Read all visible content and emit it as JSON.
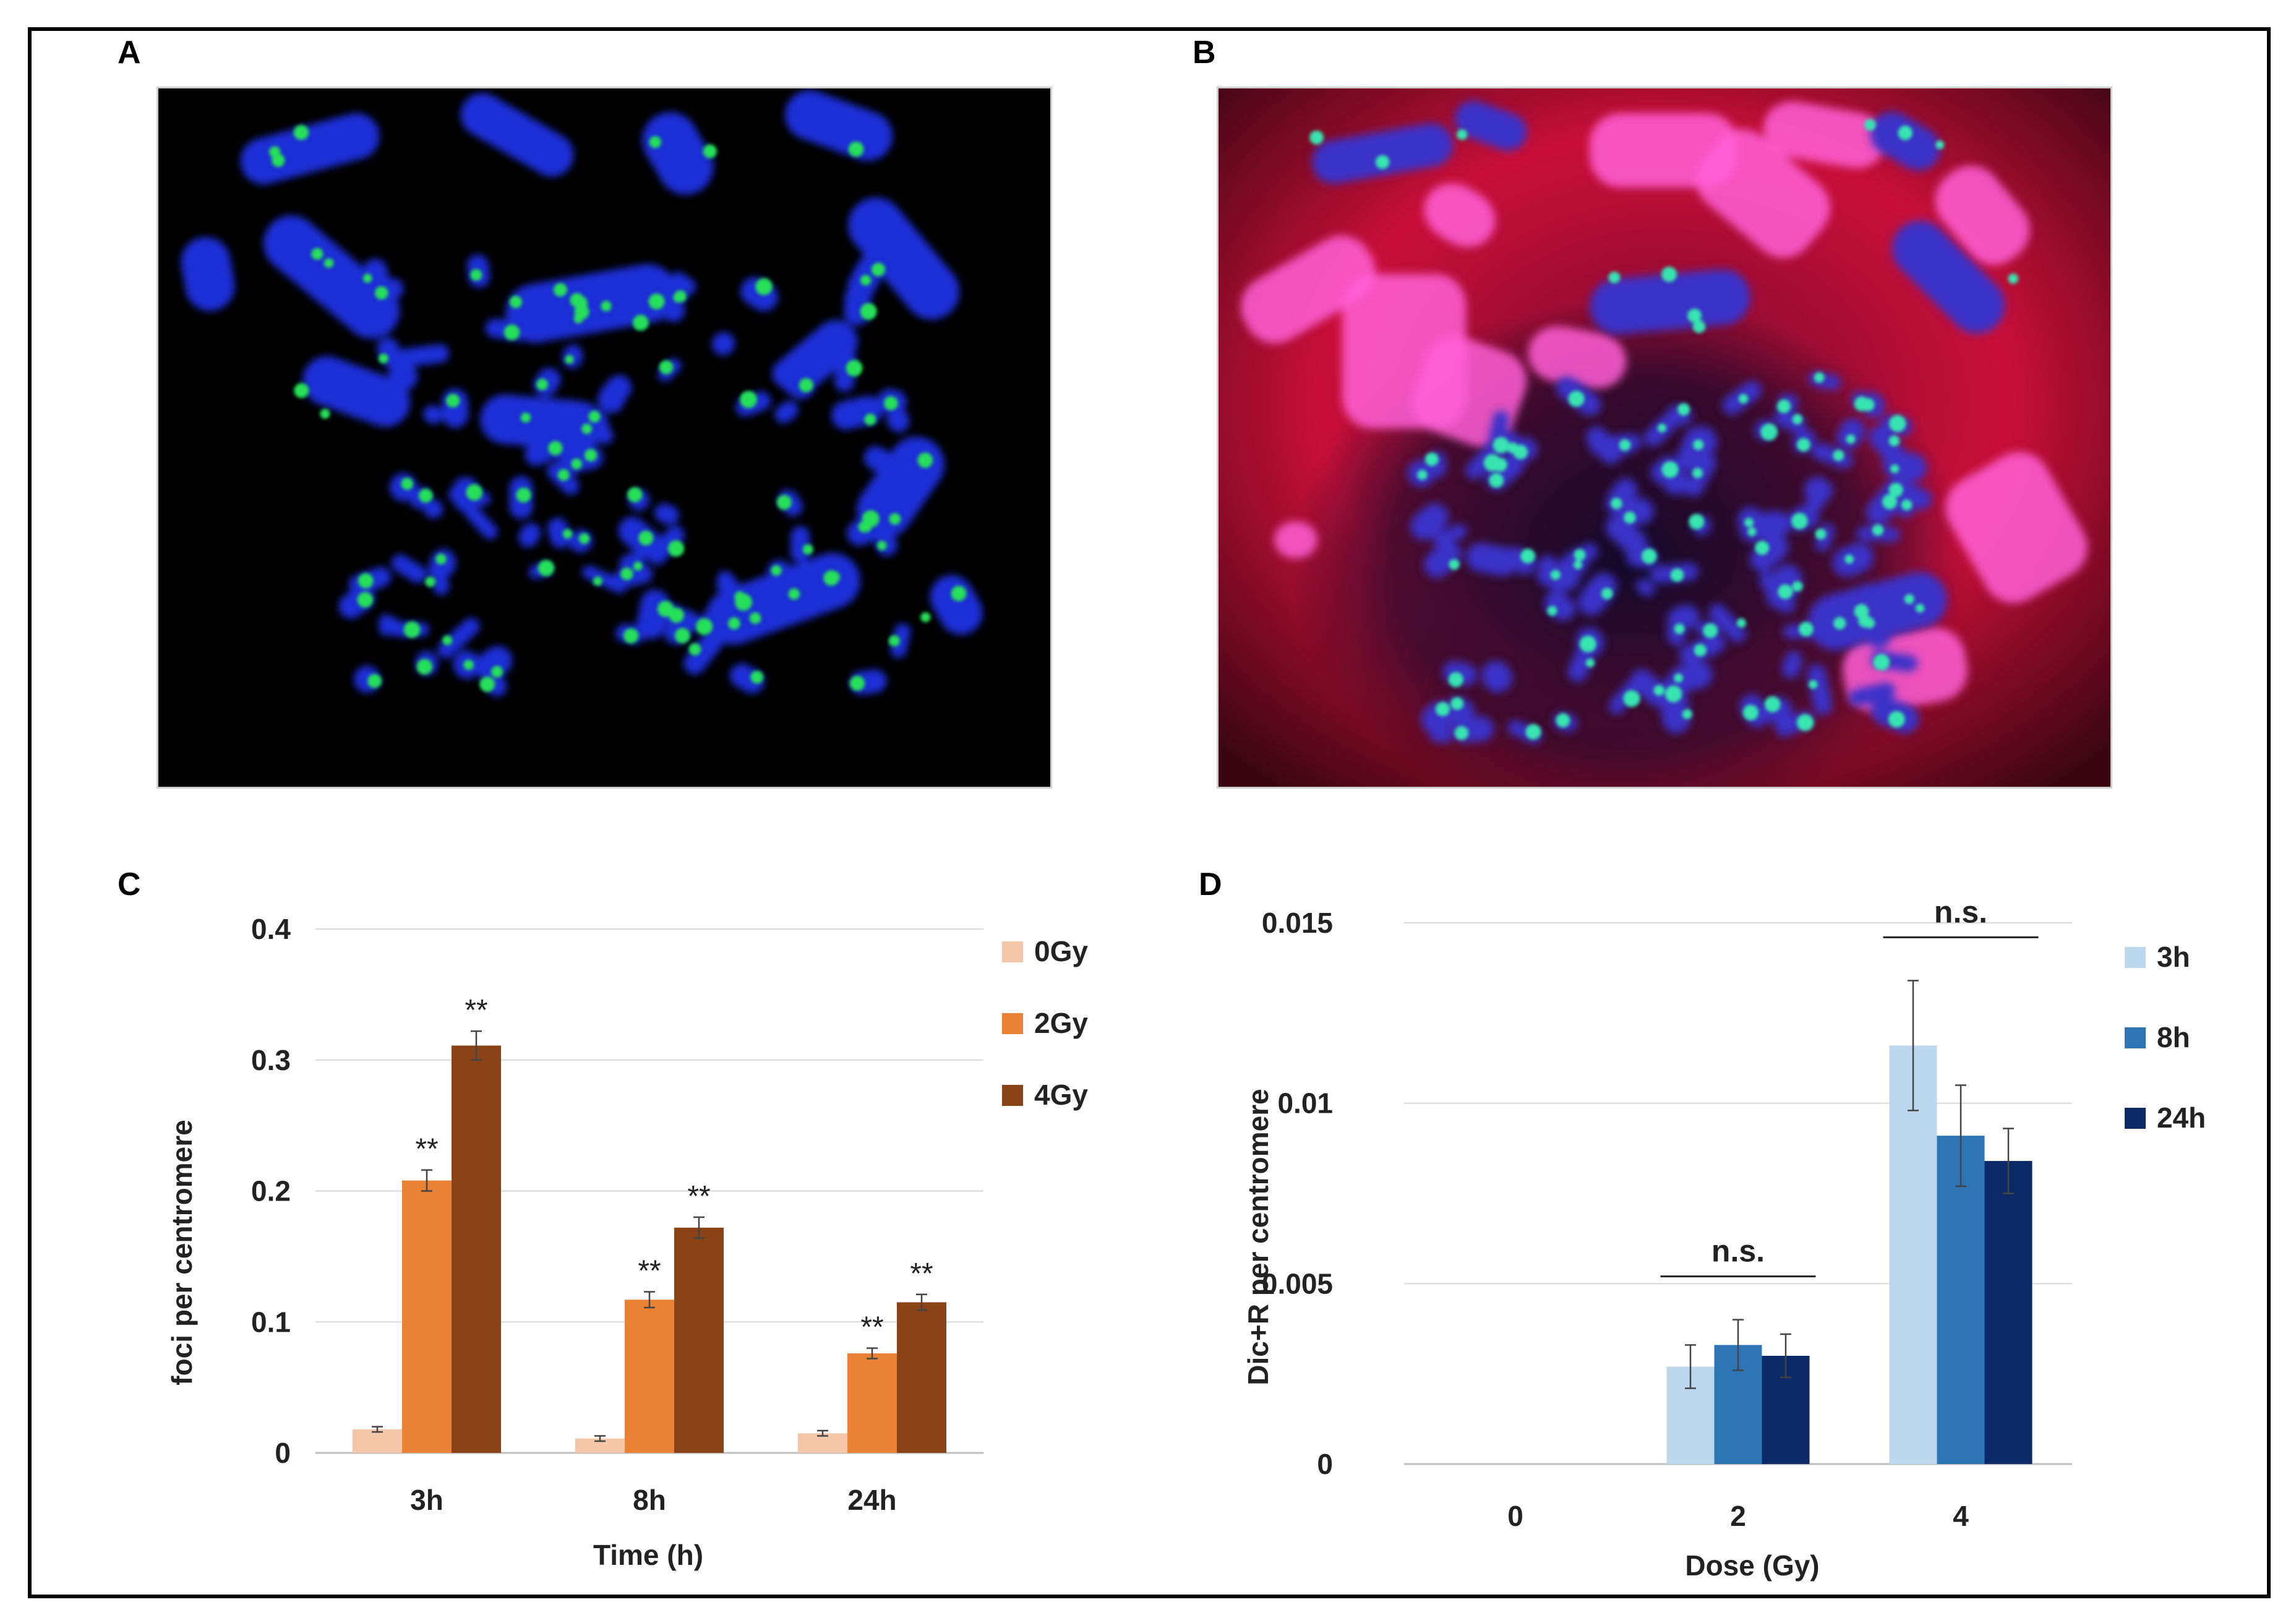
{
  "panels": {
    "a_label": "A",
    "b_label": "B",
    "c_label": "C",
    "d_label": "D"
  },
  "images": {
    "a_description": "metaphase chromosomes, DAPI (blue) with green centromere foci",
    "b_description": "metaphase chromosomes, DAPI (blue), green centromere foci, red telomere/background staining"
  },
  "colors": {
    "c_0gy": "#f4c6aa",
    "c_2gy": "#ea8236",
    "c_4gy": "#8a4316",
    "d_3h": "#bdd7ee",
    "d_8h": "#2e75b6",
    "d_24h": "#0b2a66",
    "grid": "#d9d9d9",
    "axis": "#bfbfbf"
  },
  "chart_data": [
    {
      "type": "bar",
      "panel": "C",
      "categories": [
        "3h",
        "8h",
        "24h"
      ],
      "series": [
        {
          "name": "0Gy",
          "values": [
            0.018,
            0.011,
            0.015
          ],
          "errors": [
            0.002,
            0.002,
            0.002
          ],
          "sig": [
            "",
            "",
            ""
          ]
        },
        {
          "name": "2Gy",
          "values": [
            0.208,
            0.117,
            0.076
          ],
          "errors": [
            0.008,
            0.006,
            0.004
          ],
          "sig": [
            "**",
            "**",
            "**"
          ]
        },
        {
          "name": "4Gy",
          "values": [
            0.311,
            0.172,
            0.115
          ],
          "errors": [
            0.011,
            0.008,
            0.006
          ],
          "sig": [
            "**",
            "**",
            "**"
          ]
        }
      ],
      "xlabel": "Time (h)",
      "ylabel": "foci per centromere",
      "ylim": [
        0,
        0.4
      ],
      "yticks": [
        0,
        0.1,
        0.2,
        0.3,
        0.4
      ],
      "ytick_labels": [
        "0",
        "0.1",
        "0.2",
        "0.3",
        "0.4"
      ],
      "grid": true,
      "legend": "right"
    },
    {
      "type": "bar",
      "panel": "D",
      "categories": [
        "0",
        "2",
        "4"
      ],
      "series": [
        {
          "name": "3h",
          "values": [
            0,
            0.0027,
            0.0116
          ],
          "errors": [
            0,
            0.0006,
            0.0018
          ]
        },
        {
          "name": "8h",
          "values": [
            0,
            0.0033,
            0.0091
          ],
          "errors": [
            0,
            0.0007,
            0.0014
          ]
        },
        {
          "name": "24h",
          "values": [
            0,
            0.003,
            0.0084
          ],
          "errors": [
            0,
            0.0006,
            0.0009
          ]
        }
      ],
      "annotations": [
        {
          "text": "n.s.",
          "category": "2"
        },
        {
          "text": "n.s.",
          "category": "4"
        }
      ],
      "xlabel": "Dose (Gy)",
      "ylabel": "Dic+R per centromere",
      "ylim": [
        0,
        0.015
      ],
      "yticks": [
        0,
        0.005,
        0.01,
        0.015
      ],
      "ytick_labels": [
        "0",
        "0.005",
        "0.01",
        "0.015"
      ],
      "grid": true,
      "legend": "right"
    }
  ]
}
